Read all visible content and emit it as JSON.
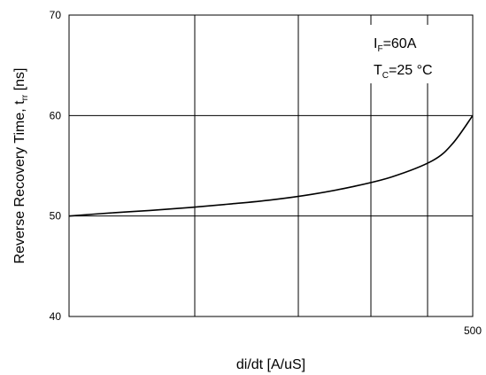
{
  "chart_data": {
    "type": "line",
    "xlabel": "di/dt [A/uS]",
    "ylabel": {
      "main": "Reverse Recovery Time, t",
      "sub": "rr",
      "unit": " [ns]"
    },
    "ylim": [
      40,
      70
    ],
    "yticks": [
      "40",
      "50",
      "60",
      "70"
    ],
    "xticks": [
      "500"
    ],
    "xlim": [
      0,
      1
    ],
    "grid": true,
    "annotations": [
      {
        "main": "I",
        "sub": "F",
        "rest": "=60A"
      },
      {
        "main": "T",
        "sub": "C",
        "rest": "=25 °C"
      }
    ],
    "series": [
      {
        "x": [
          0.0,
          0.1,
          0.2,
          0.3,
          0.4,
          0.5,
          0.6,
          0.7,
          0.8,
          0.9,
          0.95,
          1.0
        ],
        "values": [
          50.0,
          50.3,
          50.55,
          50.85,
          51.2,
          51.6,
          52.15,
          52.9,
          53.9,
          55.5,
          57.2,
          60.0
        ]
      }
    ]
  }
}
